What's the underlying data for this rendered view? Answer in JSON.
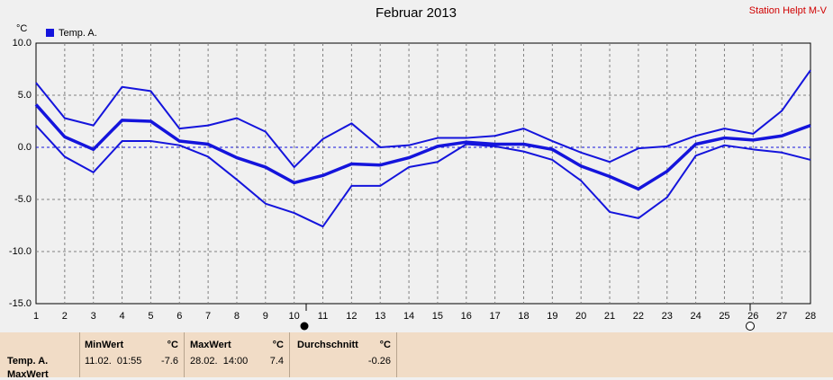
{
  "chart_data": {
    "type": "line",
    "title": "Februar 2013",
    "station": "Station Helpt M-V",
    "ylabel": "°C",
    "color": "#1414dc",
    "x": [
      1,
      2,
      3,
      4,
      5,
      6,
      7,
      8,
      9,
      10,
      11,
      12,
      13,
      14,
      15,
      16,
      17,
      18,
      19,
      20,
      21,
      22,
      23,
      24,
      25,
      26,
      27,
      28
    ],
    "series": [
      {
        "values": [
          6.2,
          2.8,
          2.1,
          5.8,
          5.4,
          1.8,
          2.1,
          2.8,
          1.5,
          -1.9,
          0.8,
          2.3,
          0.0,
          0.2,
          0.9,
          0.9,
          1.1,
          1.8,
          0.6,
          -0.5,
          -1.4,
          -0.1,
          0.1,
          1.1,
          1.8,
          1.3,
          3.5,
          7.4
        ]
      },
      {
        "name": "Temp. A.",
        "values": [
          4.1,
          1.0,
          -0.2,
          2.6,
          2.5,
          0.6,
          0.3,
          -1.0,
          -1.9,
          -3.4,
          -2.7,
          -1.6,
          -1.7,
          -1.0,
          0.1,
          0.5,
          0.3,
          0.3,
          -0.2,
          -1.8,
          -2.8,
          -4.0,
          -2.3,
          0.3,
          0.9,
          0.7,
          1.1,
          2.1
        ]
      },
      {
        "values": [
          2.1,
          -0.9,
          -2.4,
          0.6,
          0.6,
          0.2,
          -0.9,
          -3.1,
          -5.4,
          -6.3,
          -7.6,
          -3.7,
          -3.7,
          -1.9,
          -1.4,
          0.3,
          0.1,
          -0.4,
          -1.2,
          -3.2,
          -6.2,
          -6.8,
          -4.8,
          -0.8,
          0.2,
          -0.2,
          -0.5,
          -1.2
        ]
      }
    ],
    "xlim": [
      1,
      28
    ],
    "xticks": [
      1,
      2,
      3,
      4,
      5,
      6,
      7,
      8,
      9,
      10,
      11,
      12,
      13,
      14,
      15,
      16,
      17,
      18,
      19,
      20,
      21,
      22,
      23,
      24,
      25,
      26,
      27,
      28
    ],
    "ylim": [
      -15,
      10
    ],
    "yticks": [
      {
        "value": -15,
        "label": "-15.0"
      },
      {
        "value": -10,
        "label": "-10.0"
      },
      {
        "value": -5,
        "label": "-5.0"
      },
      {
        "value": 0,
        "label": "0.0"
      },
      {
        "value": 5,
        "label": "5.0"
      },
      {
        "value": 10,
        "label": "10.0"
      }
    ],
    "grid": true
  },
  "stats": {
    "row_label": "Temp. A.",
    "row_label_2": "MaxWert",
    "columns": [
      {
        "header": "MinWert",
        "unit": "°C",
        "time": "11.02.  01:55",
        "value": -7.6
      },
      {
        "header": "MaxWert",
        "unit": "°C",
        "time": "28.02.  14:00",
        "value": 7.4
      },
      {
        "header": "Durchschnitt",
        "unit": "°C",
        "value": -0.26
      }
    ]
  }
}
